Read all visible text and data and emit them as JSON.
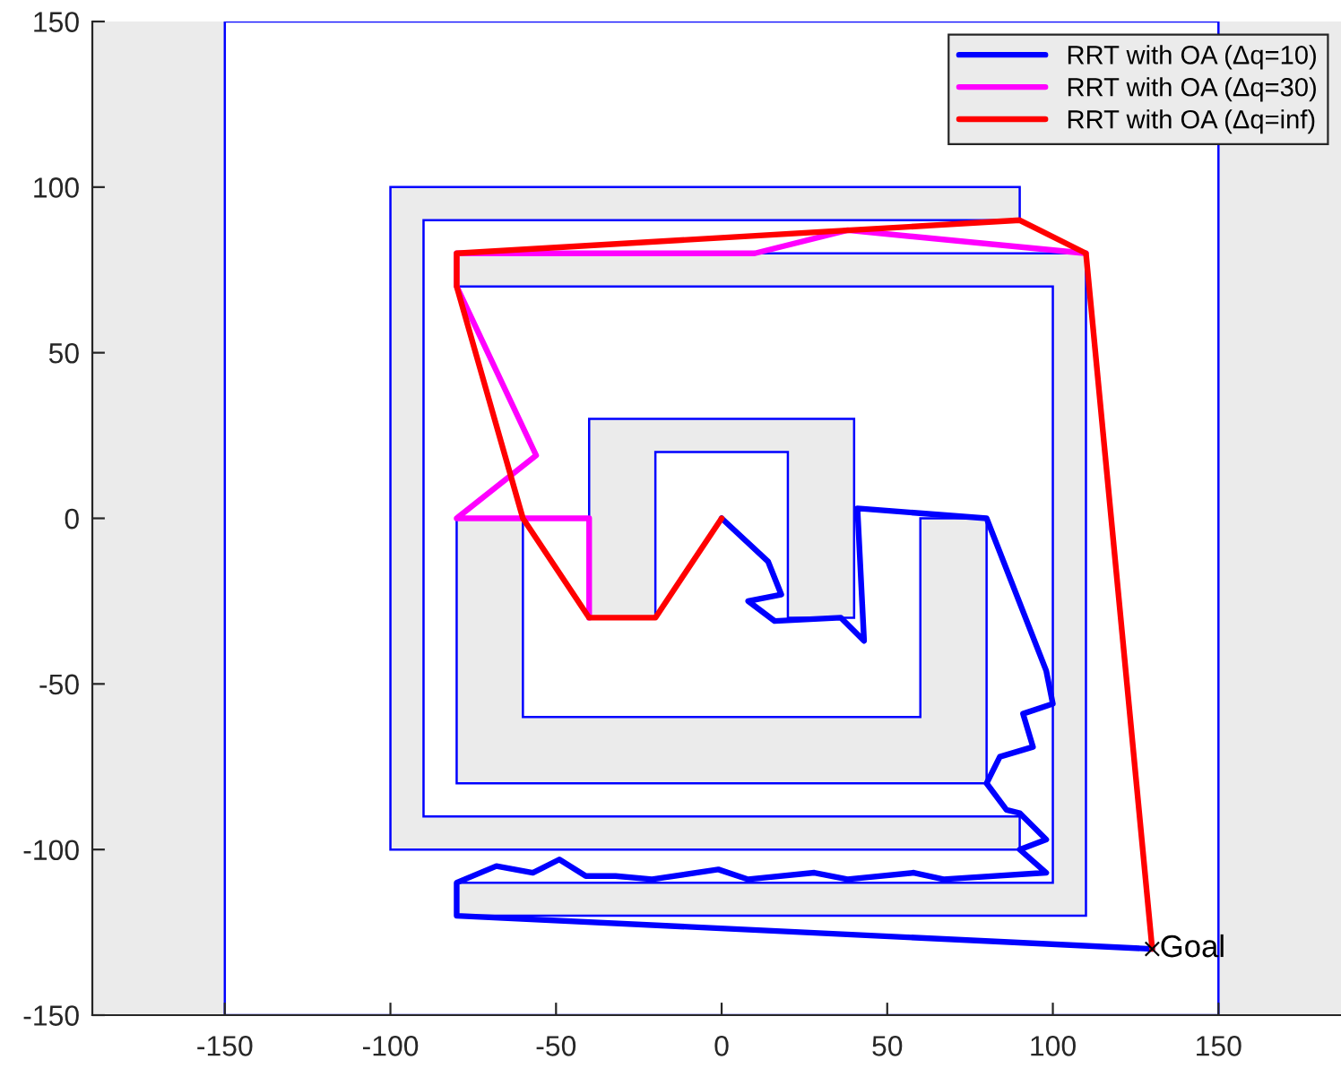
{
  "chart_data": {
    "type": "line",
    "xlim": [
      -190,
      187
    ],
    "ylim": [
      -150,
      150
    ],
    "xticks": [
      -150,
      -100,
      -50,
      0,
      50,
      100,
      150
    ],
    "yticks": [
      -150,
      -100,
      -50,
      0,
      50,
      100,
      150
    ],
    "legend": "top right",
    "series": [
      {
        "type": "area",
        "color": "#ffffff",
        "x": [
          -150,
          150,
          150,
          -150
        ],
        "values": [
          -150,
          -150,
          150,
          150
        ]
      },
      {
        "type": "area",
        "color": "#ebebeb",
        "x": [
          -100,
          90,
          90,
          -90,
          -90,
          90,
          90,
          -100,
          null,
          -80,
          110,
          110,
          -80,
          -80,
          100,
          100,
          -80,
          null,
          -80,
          -60,
          -60,
          60,
          60,
          80,
          80,
          -80,
          null,
          -40,
          40,
          40,
          20,
          20,
          -20,
          -20,
          -40
        ],
        "values": [
          100,
          100,
          90,
          90,
          -90,
          -90,
          -100,
          -100,
          null,
          80,
          80,
          -120,
          -120,
          -110,
          -110,
          70,
          70,
          null,
          0,
          0,
          -60,
          -60,
          0,
          0,
          -80,
          -80,
          null,
          30,
          30,
          -30,
          -30,
          20,
          20,
          -30,
          -30
        ]
      },
      {
        "name": "RRT with OA (Δq=10)",
        "color": "#0000ff",
        "x": [
          0,
          14,
          18,
          8,
          16,
          36,
          43,
          41,
          80,
          98,
          100,
          91,
          94,
          84,
          80,
          86,
          90,
          98,
          90,
          98,
          67,
          58,
          38,
          28,
          8,
          -1,
          -21,
          -32,
          -41,
          -49,
          -57,
          -68,
          -80,
          -80,
          130
        ],
        "values": [
          0,
          -13,
          -23,
          -25,
          -31,
          -30,
          -37,
          3,
          0,
          -46,
          -56,
          -59,
          -69,
          -72,
          -80,
          -88,
          -89,
          -97,
          -100,
          -107,
          -109,
          -107,
          -109,
          -107,
          -109,
          -106,
          -109,
          -108,
          -108,
          -103,
          -107,
          -105,
          -110,
          -120,
          -130
        ]
      },
      {
        "name": "RRT with OA (Δq=30)",
        "color": "#ff00ff",
        "x": [
          -40,
          -40,
          -80,
          -56,
          -80,
          -80,
          10,
          38,
          110
        ],
        "values": [
          -30,
          0,
          0,
          19,
          70,
          80,
          80,
          87,
          80
        ]
      },
      {
        "name": "RRT with OA (Δq=inf)",
        "color": "#ff0000",
        "x": [
          0,
          -20,
          -40,
          -60,
          -80,
          -80,
          90,
          110,
          130
        ],
        "values": [
          0,
          -30,
          -30,
          0,
          70,
          80,
          90,
          80,
          -130
        ]
      },
      {
        "type": "scatter",
        "color": "#000000",
        "marker": "cross",
        "x": [
          130
        ],
        "values": [
          -130
        ]
      }
    ],
    "annotations": [
      {
        "text": "Goal",
        "x": 130,
        "y": -130
      }
    ]
  }
}
